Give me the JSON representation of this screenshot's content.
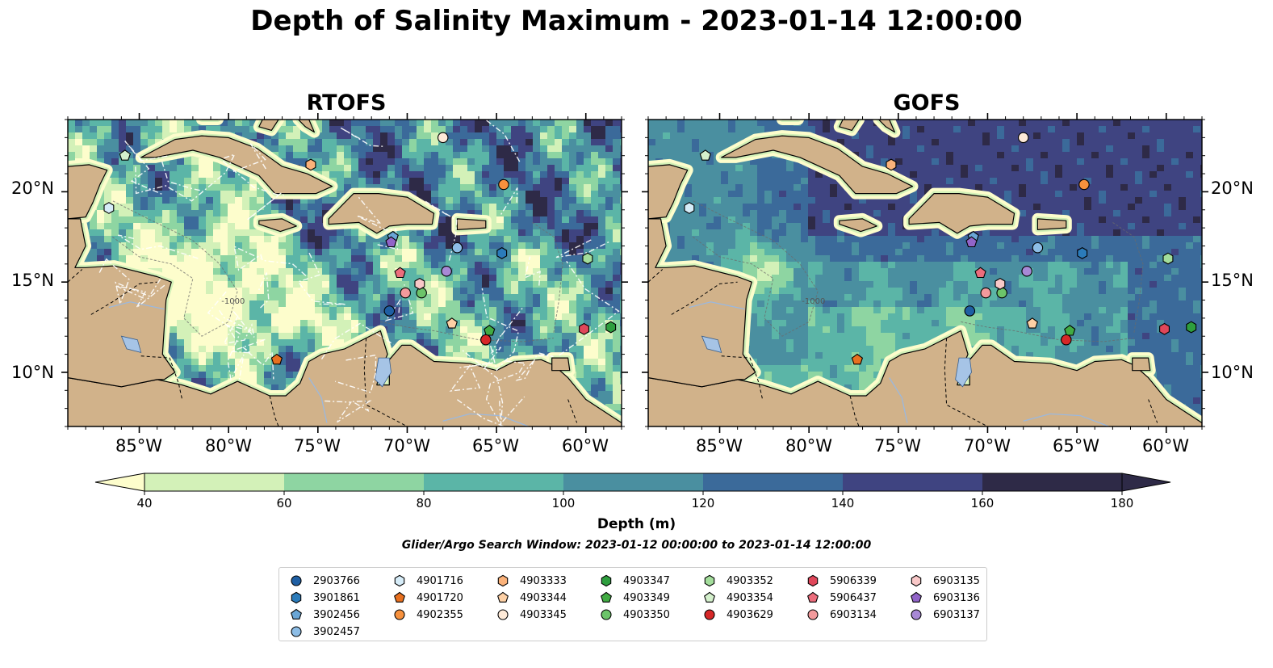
{
  "title": "Depth of Salinity Maximum - 2023-01-14 12:00:00",
  "panels": [
    {
      "title": "RTOFS"
    },
    {
      "title": "GOFS"
    }
  ],
  "lat_ticks": [
    "20°N",
    "15°N",
    "10°N"
  ],
  "lon_ticks": [
    "85°W",
    "80°W",
    "75°W",
    "70°W",
    "65°W",
    "60°W"
  ],
  "colorbar": {
    "label": "Depth (m)",
    "ticks": [
      "40",
      "60",
      "80",
      "100",
      "120",
      "140",
      "160",
      "180"
    ],
    "colors": [
      "#fdfdcc",
      "#d3f1b8",
      "#8ed5a2",
      "#5bb5a7",
      "#4a8fa0",
      "#3b6a9a",
      "#3f4481",
      "#2e2a47"
    ]
  },
  "search_window": "Glider/Argo Search Window: 2023-01-12 00:00:00 to 2023-01-14 12:00:00",
  "contour_label": "-1000",
  "chart_data": {
    "type": "map",
    "extent": {
      "lon": [
        -89,
        -58
      ],
      "lat": [
        7,
        24
      ]
    },
    "field": "Depth of salinity maximum",
    "units": "m",
    "color_levels": [
      40,
      60,
      80,
      100,
      120,
      140,
      160,
      180
    ],
    "floats": [
      {
        "id": "2903766",
        "marker": "circle",
        "color": "#1f5fa3",
        "lon": -71.0,
        "lat": 13.4
      },
      {
        "id": "3901861",
        "marker": "hexagon",
        "color": "#2b7bba",
        "lon": -64.7,
        "lat": 16.6
      },
      {
        "id": "3902456",
        "marker": "pentagon",
        "color": "#6aa6d6",
        "lon": -70.8,
        "lat": 17.5
      },
      {
        "id": "3902457",
        "marker": "circle",
        "color": "#8dbde6",
        "lon": -67.2,
        "lat": 16.9
      },
      {
        "id": "4901716",
        "marker": "hexagon",
        "color": "#d6ecf8",
        "lon": -86.7,
        "lat": 19.1
      },
      {
        "id": "4901720",
        "marker": "pentagon",
        "color": "#e8701f",
        "lon": -77.3,
        "lat": 10.7
      },
      {
        "id": "4902355",
        "marker": "circle",
        "color": "#f7913d",
        "lon": -64.6,
        "lat": 20.4
      },
      {
        "id": "4903333",
        "marker": "hexagon",
        "color": "#fbb27a",
        "lon": -75.4,
        "lat": 21.5
      },
      {
        "id": "4903344",
        "marker": "pentagon",
        "color": "#fdd0a5",
        "lon": -67.5,
        "lat": 12.7
      },
      {
        "id": "4903345",
        "marker": "circle",
        "color": "#feead8",
        "lon": -68.0,
        "lat": 23.0
      },
      {
        "id": "4903347",
        "marker": "hexagon",
        "color": "#2e9e3e",
        "lon": -58.6,
        "lat": 12.5
      },
      {
        "id": "4903349",
        "marker": "pentagon",
        "color": "#41ab43",
        "lon": -65.4,
        "lat": 12.3
      },
      {
        "id": "4903350",
        "marker": "circle",
        "color": "#6cc46a",
        "lon": -69.2,
        "lat": 14.4
      },
      {
        "id": "4903352",
        "marker": "hexagon",
        "color": "#a3dd9b",
        "lon": -59.9,
        "lat": 16.3
      },
      {
        "id": "4903354",
        "marker": "pentagon",
        "color": "#d4f0cc",
        "lon": -85.8,
        "lat": 22.0
      },
      {
        "id": "4903629",
        "marker": "circle",
        "color": "#d62728",
        "lon": -65.6,
        "lat": 11.8
      },
      {
        "id": "5906339",
        "marker": "hexagon",
        "color": "#e0475a",
        "lon": -60.1,
        "lat": 12.4
      },
      {
        "id": "5906437",
        "marker": "pentagon",
        "color": "#ec6d7c",
        "lon": -70.4,
        "lat": 15.5
      },
      {
        "id": "6903134",
        "marker": "circle",
        "color": "#f29a9c",
        "lon": -70.1,
        "lat": 14.4
      },
      {
        "id": "6903135",
        "marker": "hexagon",
        "color": "#f9c8c8",
        "lon": -69.3,
        "lat": 14.9
      },
      {
        "id": "6903136",
        "marker": "pentagon",
        "color": "#9164c8",
        "lon": -70.9,
        "lat": 17.2
      },
      {
        "id": "6903137",
        "marker": "circle",
        "color": "#a889d6",
        "lon": -67.8,
        "lat": 15.6
      }
    ]
  }
}
